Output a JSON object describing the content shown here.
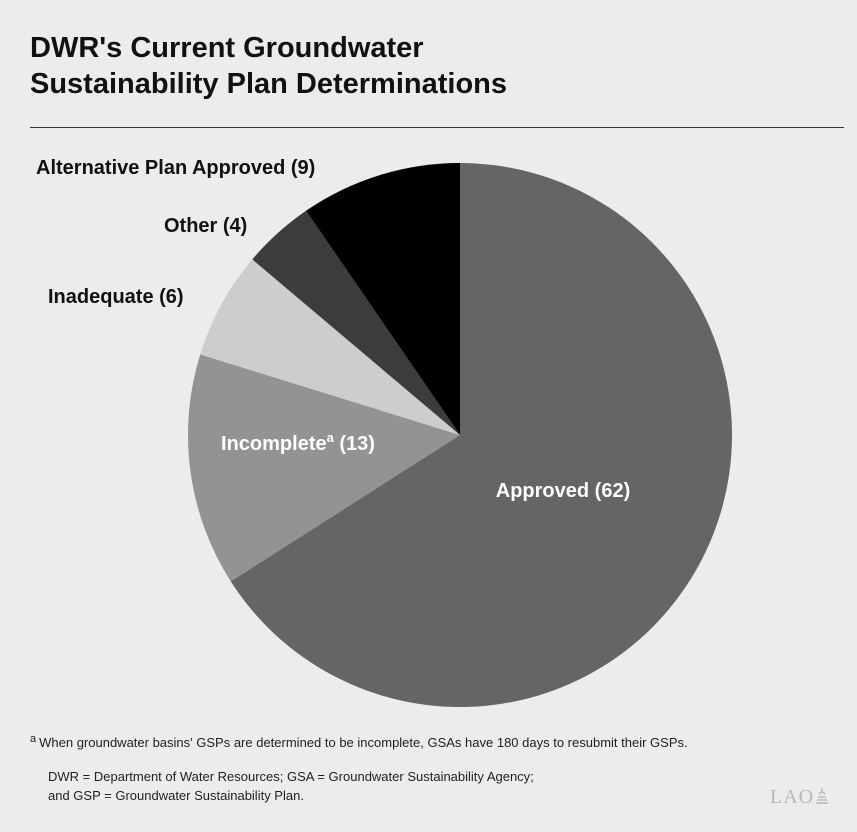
{
  "header": {
    "title_line1": "DWR's Current Groundwater",
    "title_line2": "Sustainability Plan Determinations"
  },
  "chart_data": {
    "type": "pie",
    "title": "DWR's Current Groundwater Sustainability Plan Determinations",
    "slices": [
      {
        "label": "Approved",
        "value": 62,
        "display": "Approved (62)",
        "color": "#646567",
        "label_color": "#ffffff",
        "label_inside": true
      },
      {
        "label": "Incomplete",
        "value": 13,
        "display": "Incomplete",
        "footnote_mark": "a",
        "count_text": " (13)",
        "color": "#929395",
        "label_color": "#ffffff",
        "label_inside": true
      },
      {
        "label": "Inadequate",
        "value": 6,
        "display": "Inadequate (6)",
        "color": "#cdcdcd",
        "label_color": "#111111",
        "label_inside": false
      },
      {
        "label": "Other",
        "value": 4,
        "display": "Other (4)",
        "color": "#3c3c3e",
        "label_color": "#111111",
        "label_inside": false
      },
      {
        "label": "Alternative Plan Approved",
        "value": 9,
        "display": "Alternative Plan Approved (9)",
        "color": "#000000",
        "label_color": "#111111",
        "label_inside": false
      }
    ]
  },
  "footnotes": {
    "mark": "a",
    "text": "When groundwater basins' GSPs are determined to be incomplete, GSAs have 180 days to resubmit their GSPs.",
    "abbrev_line1": "DWR = Department of Water Resources; GSA = Groundwater Sustainability Agency;",
    "abbrev_line2": "and GSP = Groundwater Sustainability Plan."
  },
  "logo": {
    "text": "LAO"
  }
}
